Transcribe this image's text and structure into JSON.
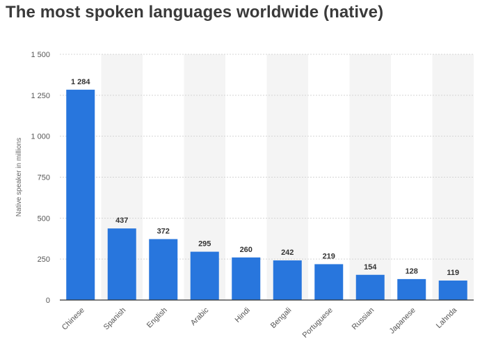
{
  "title": "The most spoken languages worldwide (native)",
  "colors": {
    "bar": "#2876dd",
    "band": "#f4f4f4",
    "grid": "#d4d4d4",
    "axis": "#333333"
  },
  "chart_data": {
    "type": "bar",
    "title": "The most spoken languages worldwide (native)",
    "xlabel": "",
    "ylabel": "Native speaker in millions",
    "ylim": [
      0,
      1500
    ],
    "yticks": [
      0,
      250,
      500,
      750,
      1000,
      1250,
      1500
    ],
    "ytick_labels": [
      "0",
      "250",
      "500",
      "750",
      "1 000",
      "1 250",
      "1 500"
    ],
    "grid": true,
    "categories": [
      "Chinese",
      "Spanish",
      "English",
      "Arabic",
      "Hindi",
      "Bengali",
      "Portuguese",
      "Russian",
      "Japanese",
      "Lahnda"
    ],
    "values": [
      1284,
      437,
      372,
      295,
      260,
      242,
      219,
      154,
      128,
      119
    ],
    "value_labels": [
      "1 284",
      "437",
      "372",
      "295",
      "260",
      "242",
      "219",
      "154",
      "128",
      "119"
    ]
  }
}
